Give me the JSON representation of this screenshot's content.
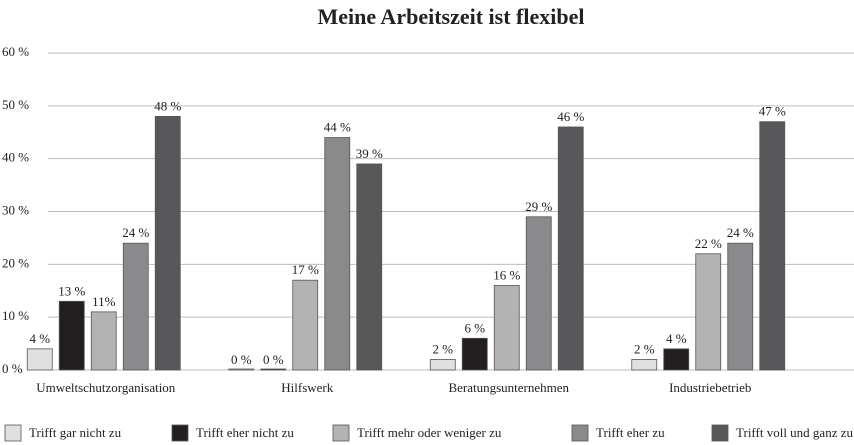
{
  "chart_data": {
    "type": "bar",
    "title": "Meine Arbeitszeit ist flexibel",
    "categories": [
      "Umweltschutzorganisation",
      "Hilfswerk",
      "Beratungsunternehmen",
      "Industriebetrieb"
    ],
    "series": [
      {
        "name": "Trifft gar nicht zu",
        "color": "#e0e0e0",
        "values": [
          4,
          0,
          2,
          2
        ],
        "value_labels": [
          "4 %",
          "0 %",
          "2 %",
          "2 %"
        ]
      },
      {
        "name": "Trifft eher nicht zu",
        "color": "#231f20",
        "values": [
          13,
          0,
          6,
          4
        ],
        "value_labels": [
          "13 %",
          "0 %",
          "6 %",
          "4 %"
        ]
      },
      {
        "name": "Trifft mehr oder weniger zu",
        "color": "#b3b3b3",
        "values": [
          11,
          17,
          16,
          22
        ],
        "value_labels": [
          "11%",
          "17 %",
          "16 %",
          "22 %"
        ]
      },
      {
        "name": "Trifft eher zu",
        "color": "#8a8a8c",
        "values": [
          24,
          44,
          29,
          24
        ],
        "value_labels": [
          "24 %",
          "44 %",
          "29 %",
          "24 %"
        ]
      },
      {
        "name": "Trifft voll und ganz zu",
        "color": "#58585a",
        "values": [
          48,
          39,
          46,
          47
        ],
        "value_labels": [
          "48 %",
          "39 %",
          "46 %",
          "47 %"
        ]
      }
    ],
    "ylim": [
      0,
      60
    ],
    "yticks": [
      {
        "value": 0,
        "label": "0 %"
      },
      {
        "value": 10,
        "label": "10 %"
      },
      {
        "value": 20,
        "label": "20 %"
      },
      {
        "value": 30,
        "label": "30 %"
      },
      {
        "value": 40,
        "label": "40 %"
      },
      {
        "value": 50,
        "label": "50 %"
      },
      {
        "value": 60,
        "label": "60 %"
      }
    ],
    "grid": true,
    "legend": "bottom"
  }
}
